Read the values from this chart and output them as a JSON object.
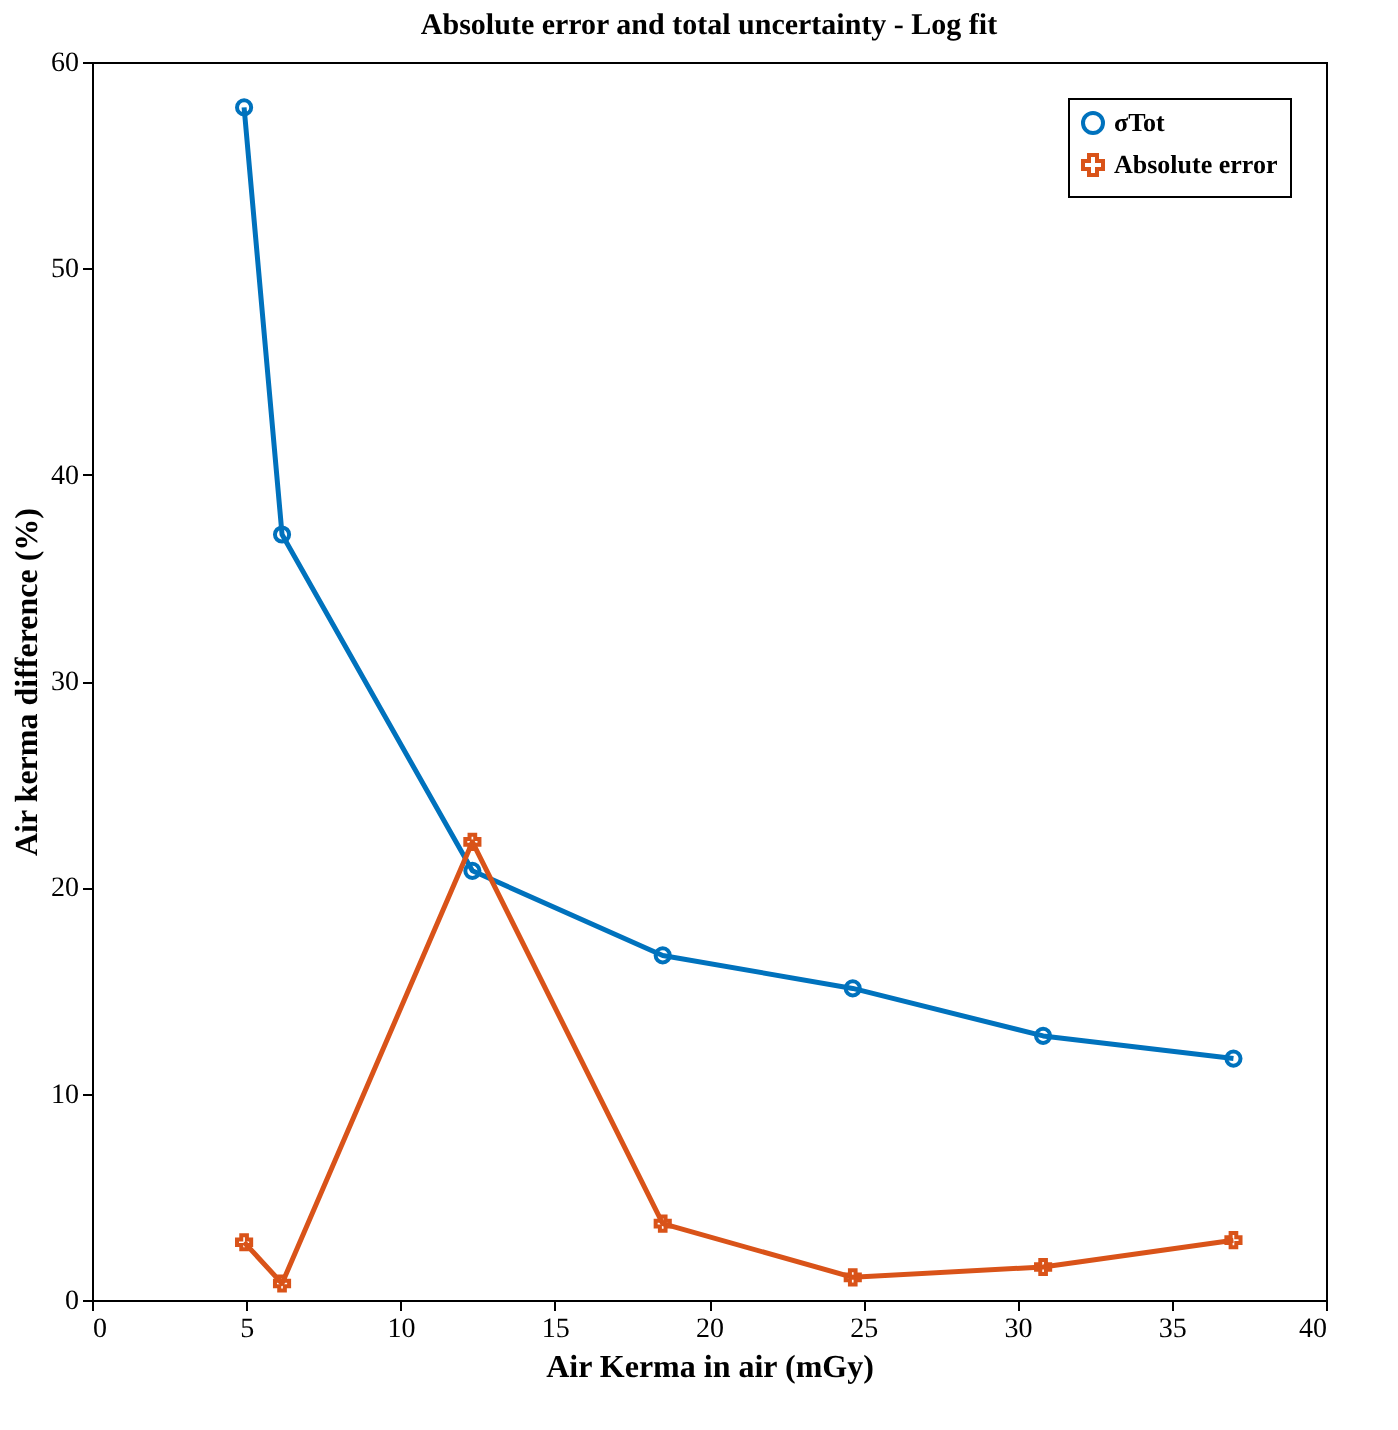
{
  "chart_data": {
    "type": "line",
    "title": "Absolute error and total uncertainty - Log fit",
    "xlabel": "Air Kerma in air (mGy)",
    "ylabel": "Air kerma difference (%)",
    "x": [
      4.93,
      6.16,
      12.33,
      18.5,
      24.66,
      30.83,
      37
    ],
    "series": [
      {
        "name": "σTot",
        "color": "#0072bd",
        "marker": "circle",
        "values": [
          57.8,
          37.1,
          20.8,
          16.7,
          15.1,
          12.8,
          11.7
        ]
      },
      {
        "name": "Absolute error",
        "color": "#d95319",
        "marker": "cross",
        "values": [
          2.8,
          0.8,
          22.2,
          3.7,
          1.1,
          1.6,
          2.9
        ]
      }
    ],
    "xlim": [
      0,
      40
    ],
    "xticks": [
      0,
      5,
      10,
      15,
      20,
      25,
      30,
      35,
      40
    ],
    "ylim": [
      0,
      60
    ],
    "yticks": [
      0,
      10,
      20,
      30,
      40,
      50,
      60
    ],
    "grid": false,
    "legend": "top right",
    "line_style": "solid"
  }
}
